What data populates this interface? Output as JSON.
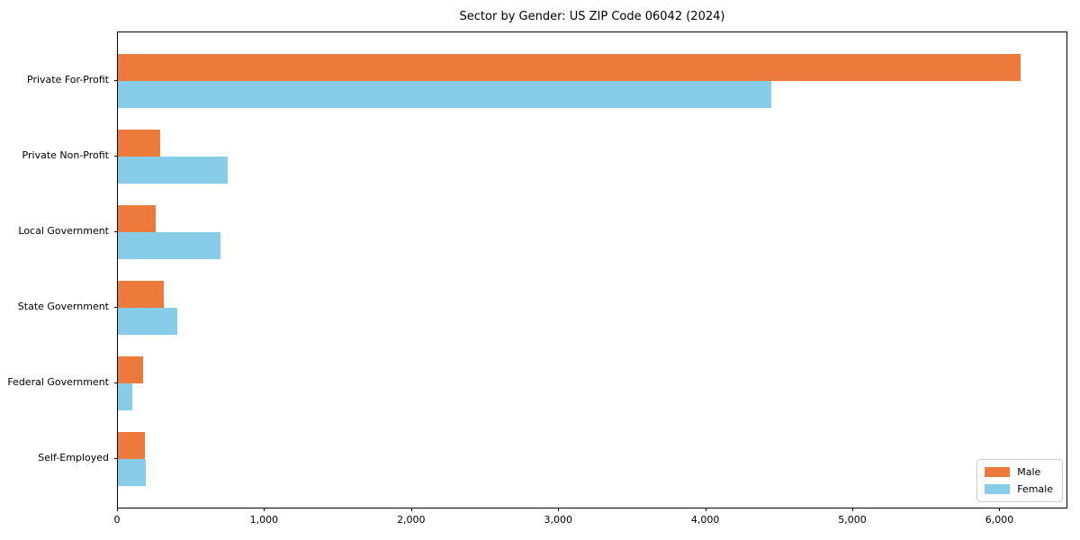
{
  "chart_data": {
    "type": "bar",
    "orientation": "horizontal",
    "title": "Sector by Gender: US ZIP Code 06042 (2024)",
    "categories": [
      "Private For-Profit",
      "Private Non-Profit",
      "Local Government",
      "State Government",
      "Federal Government",
      "Self-Employed"
    ],
    "series": [
      {
        "name": "Male",
        "color": "#EC7A3B",
        "values": [
          6140,
          285,
          260,
          315,
          170,
          185
        ]
      },
      {
        "name": "Female",
        "color": "#87CDE9",
        "values": [
          4440,
          745,
          695,
          405,
          100,
          190
        ]
      }
    ],
    "xlim": [
      0,
      6450
    ],
    "x_ticks": [
      0,
      1000,
      2000,
      3000,
      4000,
      5000,
      6000
    ],
    "x_tick_labels": [
      "0",
      "1,000",
      "2,000",
      "3,000",
      "4,000",
      "5,000",
      "6,000"
    ],
    "xlabel": "",
    "ylabel": "",
    "grid": false,
    "legend_position": "lower right",
    "colors": {
      "axis": "#000000",
      "background": "#ffffff",
      "legend_border": "#cccccc"
    }
  }
}
